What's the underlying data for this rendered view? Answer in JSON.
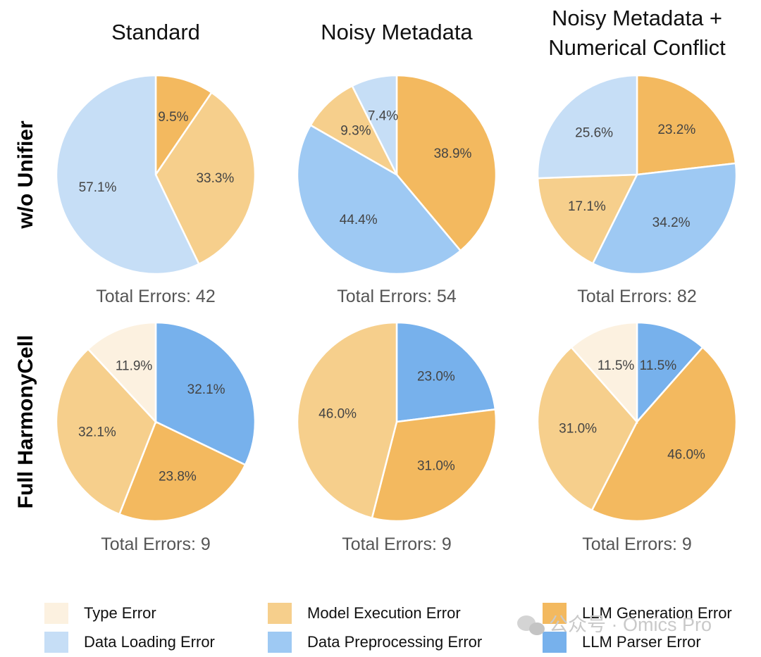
{
  "categories": [
    {
      "key": "type",
      "label": "Type Error",
      "color": "#fcf1e0"
    },
    {
      "key": "model",
      "label": "Model Execution Error",
      "color": "#f6cf8c"
    },
    {
      "key": "llmgen",
      "label": "LLM Generation Error",
      "color": "#f3b95f"
    },
    {
      "key": "loading",
      "label": "Data Loading Error",
      "color": "#c6def6"
    },
    {
      "key": "prep",
      "label": "Data Preprocessing Error",
      "color": "#9ec9f3"
    },
    {
      "key": "parser",
      "label": "LLM Parser Error",
      "color": "#77b1ec"
    }
  ],
  "columns": [
    "Standard",
    "Noisy Metadata",
    "Noisy Metadata +\nNumerical Conflict"
  ],
  "rows": [
    "w/o Unifier",
    "Full HarmonyCell"
  ],
  "chart_data": [
    {
      "type": "pie",
      "row": "w/o Unifier",
      "column": "Standard",
      "total_label": "Total Errors: 42",
      "slices": [
        {
          "category": "llmgen",
          "label": "9.5%",
          "value": 9.5
        },
        {
          "category": "model",
          "label": "33.3%",
          "value": 33.3
        },
        {
          "category": "loading",
          "label": "57.1%",
          "value": 57.1
        }
      ]
    },
    {
      "type": "pie",
      "row": "w/o Unifier",
      "column": "Noisy Metadata",
      "total_label": "Total Errors: 54",
      "slices": [
        {
          "category": "llmgen",
          "label": "38.9%",
          "value": 38.9
        },
        {
          "category": "prep",
          "label": "44.4%",
          "value": 44.4
        },
        {
          "category": "model",
          "label": "9.3%",
          "value": 9.3
        },
        {
          "category": "loading",
          "label": "7.4%",
          "value": 7.4
        }
      ]
    },
    {
      "type": "pie",
      "row": "w/o Unifier",
      "column": "Noisy Metadata + Numerical Conflict",
      "total_label": "Total Errors: 82",
      "slices": [
        {
          "category": "llmgen",
          "label": "23.2%",
          "value": 23.2
        },
        {
          "category": "prep",
          "label": "34.2%",
          "value": 34.2
        },
        {
          "category": "model",
          "label": "17.1%",
          "value": 17.1
        },
        {
          "category": "loading",
          "label": "25.6%",
          "value": 25.6
        }
      ]
    },
    {
      "type": "pie",
      "row": "Full HarmonyCell",
      "column": "Standard",
      "total_label": "Total Errors: 9",
      "slices": [
        {
          "category": "parser",
          "label": "32.1%",
          "value": 32.1
        },
        {
          "category": "llmgen",
          "label": "23.8%",
          "value": 23.8
        },
        {
          "category": "model",
          "label": "32.1%",
          "value": 32.1
        },
        {
          "category": "type",
          "label": "11.9%",
          "value": 11.9
        }
      ]
    },
    {
      "type": "pie",
      "row": "Full HarmonyCell",
      "column": "Noisy Metadata",
      "total_label": "Total Errors: 9",
      "slices": [
        {
          "category": "parser",
          "label": "23.0%",
          "value": 23.0
        },
        {
          "category": "llmgen",
          "label": "31.0%",
          "value": 31.0
        },
        {
          "category": "model",
          "label": "46.0%",
          "value": 46.0
        }
      ]
    },
    {
      "type": "pie",
      "row": "Full HarmonyCell",
      "column": "Noisy Metadata + Numerical Conflict",
      "total_label": "Total Errors: 9",
      "slices": [
        {
          "category": "parser",
          "label": "11.5%",
          "value": 11.5
        },
        {
          "category": "llmgen",
          "label": "46.0%",
          "value": 46.0
        },
        {
          "category": "model",
          "label": "31.0%",
          "value": 31.0
        },
        {
          "category": "type",
          "label": "11.5%",
          "value": 11.5
        }
      ]
    }
  ],
  "watermark": "公众号 · Omics Pro"
}
